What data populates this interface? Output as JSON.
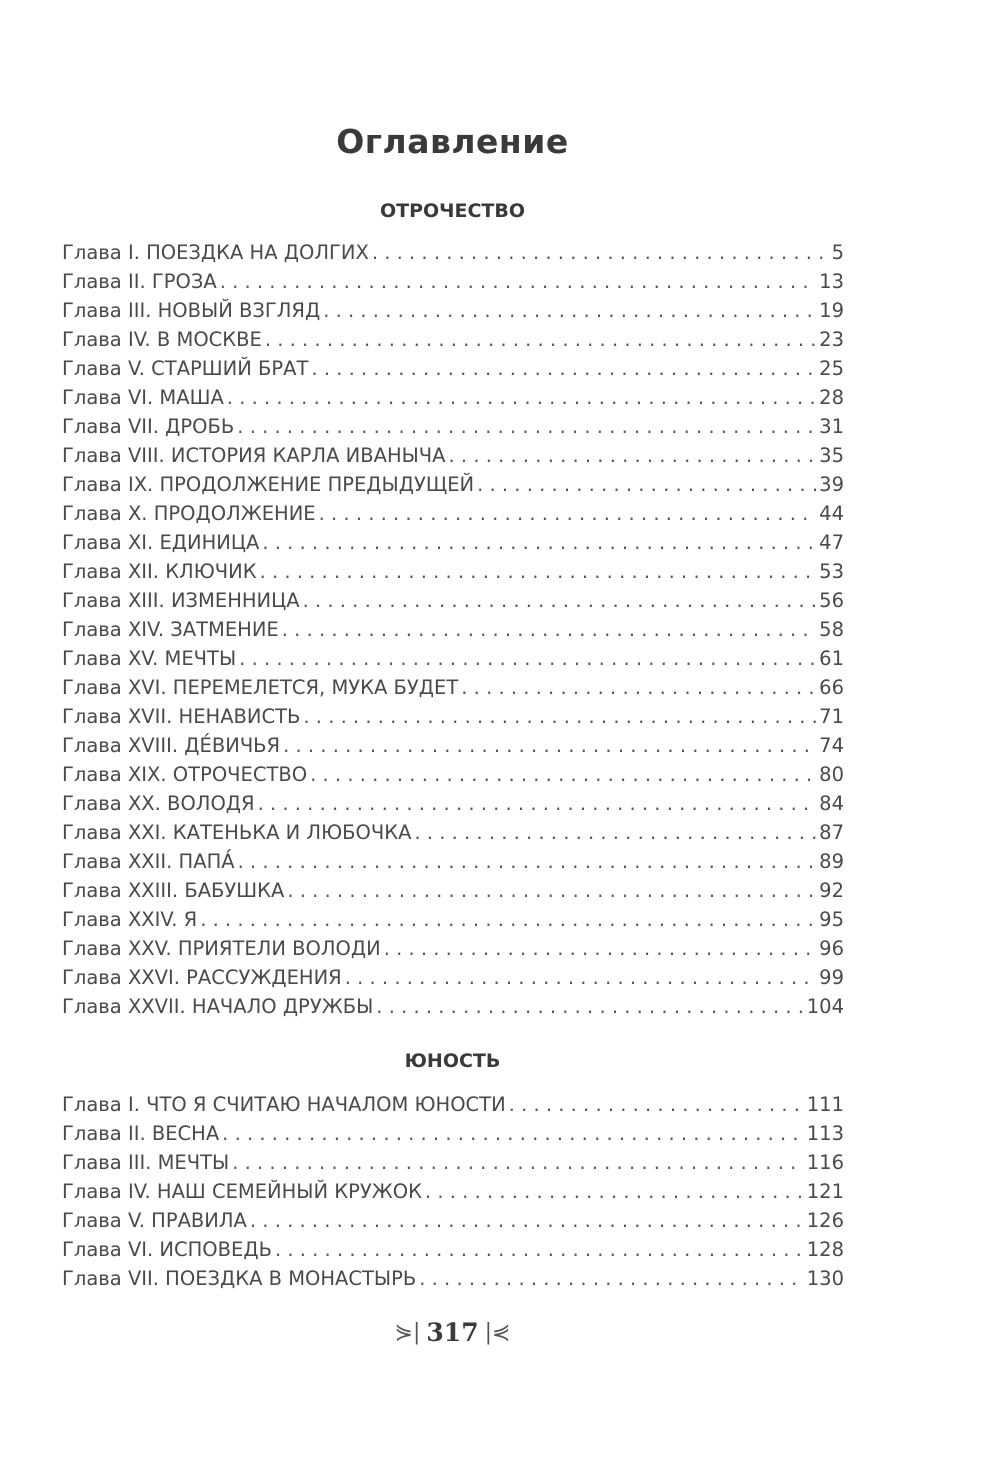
{
  "title": "Оглавление",
  "sections": [
    {
      "heading": "ОТРОЧЕСТВО",
      "entries": [
        {
          "label": "Глава I. ПОЕЗДКА НА ДОЛГИХ",
          "page": "5"
        },
        {
          "label": "Глава II. ГРОЗА",
          "page": "13"
        },
        {
          "label": "Глава III. НОВЫЙ ВЗГЛЯД",
          "page": "19"
        },
        {
          "label": "Глава IV. В МОСКВЕ",
          "page": "23"
        },
        {
          "label": "Глава V. СТАРШИЙ БРАТ",
          "page": "25"
        },
        {
          "label": "Глава VI. МАША",
          "page": "28"
        },
        {
          "label": "Глава VII. ДРОБЬ",
          "page": "31"
        },
        {
          "label": "Глава VIII. ИСТОРИЯ КАРЛА ИВАНЫЧА",
          "page": "35"
        },
        {
          "label": "Глава IX. ПРОДОЛЖЕНИЕ ПРЕДЫДУЩЕЙ",
          "page": "39"
        },
        {
          "label": "Глава X. ПРОДОЛЖЕНИЕ",
          "page": "44"
        },
        {
          "label": "Глава XI. ЕДИНИЦА",
          "page": "47"
        },
        {
          "label": "Глава XII. КЛЮЧИК",
          "page": "53"
        },
        {
          "label": "Глава XIII. ИЗМЕННИЦА",
          "page": "56"
        },
        {
          "label": "Глава XIV. ЗАТМЕНИЕ",
          "page": "58"
        },
        {
          "label": "Глава XV. МЕЧТЫ",
          "page": "61"
        },
        {
          "label": "Глава XVI. ПЕРЕМЕЛЕТСЯ, МУКА БУДЕТ",
          "page": "66"
        },
        {
          "label": "Глава XVII. НЕНАВИСТЬ",
          "page": "71"
        },
        {
          "label": "Глава XVIII. ДЕ́ВИЧЬЯ",
          "page": "74"
        },
        {
          "label": "Глава XIX. ОТРОЧЕСТВО",
          "page": "80"
        },
        {
          "label": "Глава XX. ВОЛОДЯ",
          "page": "84"
        },
        {
          "label": "Глава XXI. КАТЕНЬКА И ЛЮБОЧКА",
          "page": "87"
        },
        {
          "label": "Глава XXII. ПАПА́",
          "page": "89"
        },
        {
          "label": "Глава XXIII. БАБУШКА",
          "page": "92"
        },
        {
          "label": "Глава XXIV. Я",
          "page": "95"
        },
        {
          "label": "Глава XXV. ПРИЯТЕЛИ ВОЛОДИ",
          "page": "96"
        },
        {
          "label": "Глава XXVI. РАССУЖДЕНИЯ",
          "page": "99"
        },
        {
          "label": "Глава XXVII. НАЧАЛО ДРУЖБЫ",
          "page": "104"
        }
      ]
    },
    {
      "heading": "ЮНОСТЬ",
      "entries": [
        {
          "label": "Глава I. ЧТО Я СЧИТАЮ НАЧАЛОМ ЮНОСТИ",
          "page": "111"
        },
        {
          "label": "Глава II. ВЕСНА",
          "page": "113"
        },
        {
          "label": "Глава III. МЕЧТЫ",
          "page": "116"
        },
        {
          "label": "Глава IV. НАШ СЕМЕЙНЫЙ КРУЖОК",
          "page": "121"
        },
        {
          "label": "Глава V. ПРАВИЛА",
          "page": "126"
        },
        {
          "label": "Глава VI. ИСПОВЕДЬ",
          "page": "128"
        },
        {
          "label": "Глава VII. ПОЕЗДКА В МОНАСТЫРЬ",
          "page": "130"
        }
      ]
    }
  ],
  "footer": {
    "page_number": "317",
    "ornament_left": "⋟|",
    "ornament_right": "|⋞"
  }
}
